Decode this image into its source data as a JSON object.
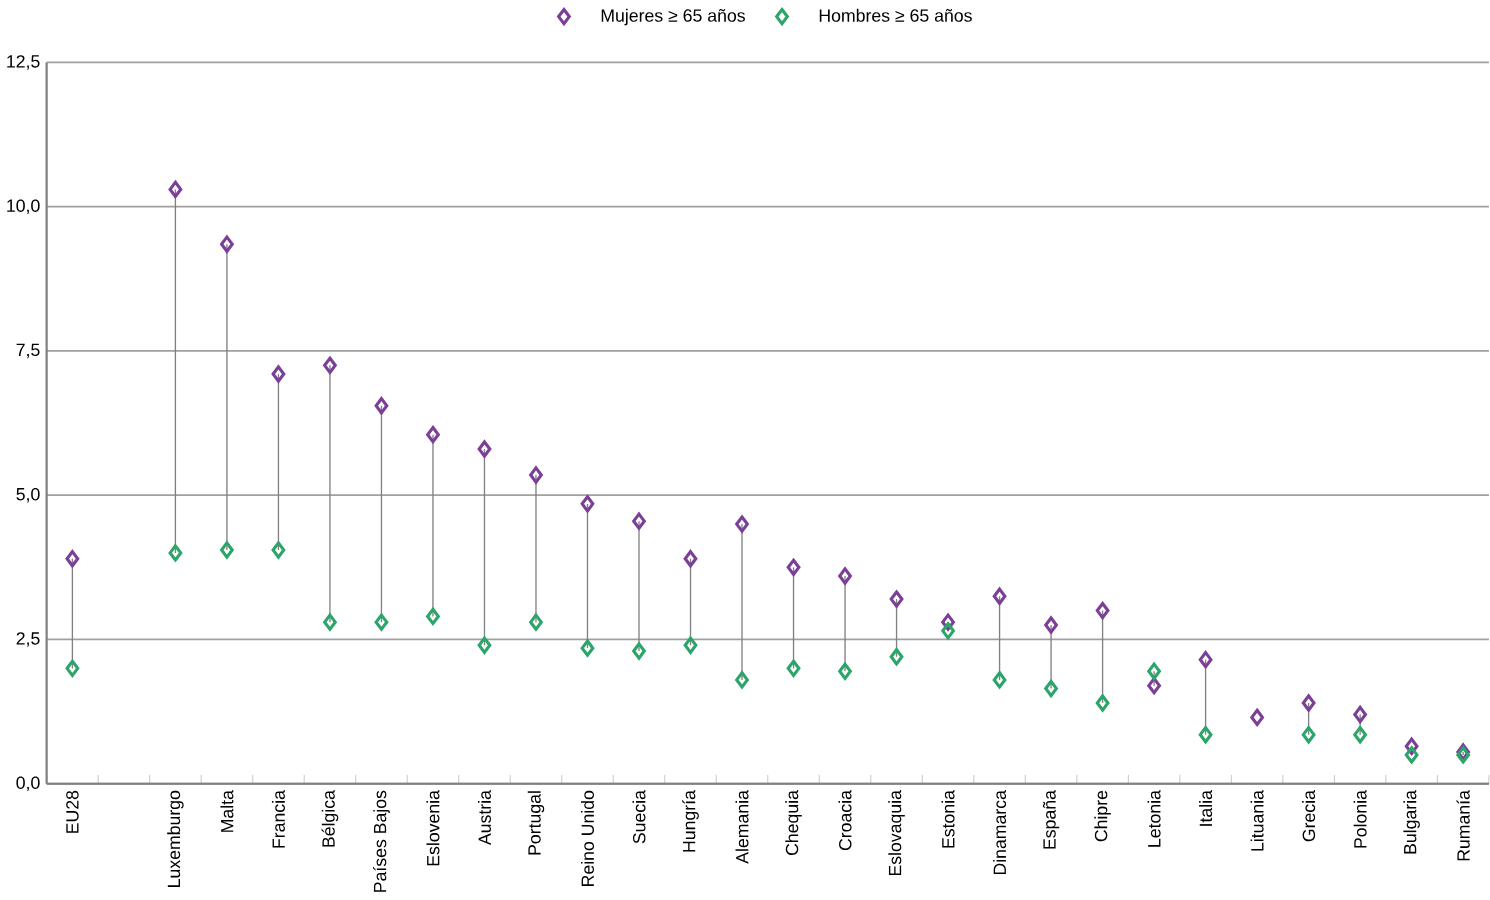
{
  "chart_data": {
    "type": "scatter",
    "marker": "diamond",
    "grid": "y",
    "legend": "top",
    "categories": [
      "EU28",
      null,
      "Luxemburgo",
      "Malta",
      "Francia",
      "Bélgica",
      "Países Bajos",
      "Eslovenia",
      "Austria",
      "Portugal",
      "Reino Unido",
      "Suecia",
      "Hungría",
      "Alemania",
      "Chequia",
      "Croacia",
      "Eslovaquia",
      "Estonia",
      "Dinamarca",
      "España",
      "Chipre",
      "Letonia",
      "Italia",
      "Lituania",
      "Grecia",
      "Polonia",
      "Bulgaria",
      "Rumanía"
    ],
    "ylim": [
      0,
      12.5
    ],
    "yticks": [
      {
        "value": 0,
        "label": "0,0"
      },
      {
        "value": 2.5,
        "label": "2,5"
      },
      {
        "value": 5,
        "label": "5,0"
      },
      {
        "value": 7.5,
        "label": "7,5"
      },
      {
        "value": 10,
        "label": "10,0"
      },
      {
        "value": 12.5,
        "label": "12,5"
      }
    ],
    "series": [
      {
        "name": "Mujeres ≥ 65 años",
        "color": "#7b3f98",
        "values": [
          3.9,
          null,
          10.3,
          9.35,
          7.1,
          7.25,
          6.55,
          6.05,
          5.8,
          5.35,
          4.85,
          4.55,
          3.9,
          4.5,
          3.75,
          3.6,
          3.2,
          2.8,
          3.25,
          2.75,
          3.0,
          1.7,
          2.15,
          1.15,
          1.4,
          1.2,
          0.65,
          0.55
        ]
      },
      {
        "name": "Hombres ≥ 65 años",
        "color": "#2ca56a",
        "values": [
          2.0,
          null,
          4.0,
          4.05,
          4.05,
          2.8,
          2.8,
          2.9,
          2.4,
          2.8,
          2.35,
          2.3,
          2.4,
          1.8,
          2.0,
          1.95,
          2.2,
          2.65,
          1.8,
          1.65,
          1.4,
          1.95,
          0.85,
          null,
          0.85,
          0.85,
          0.5,
          0.5
        ]
      }
    ]
  }
}
